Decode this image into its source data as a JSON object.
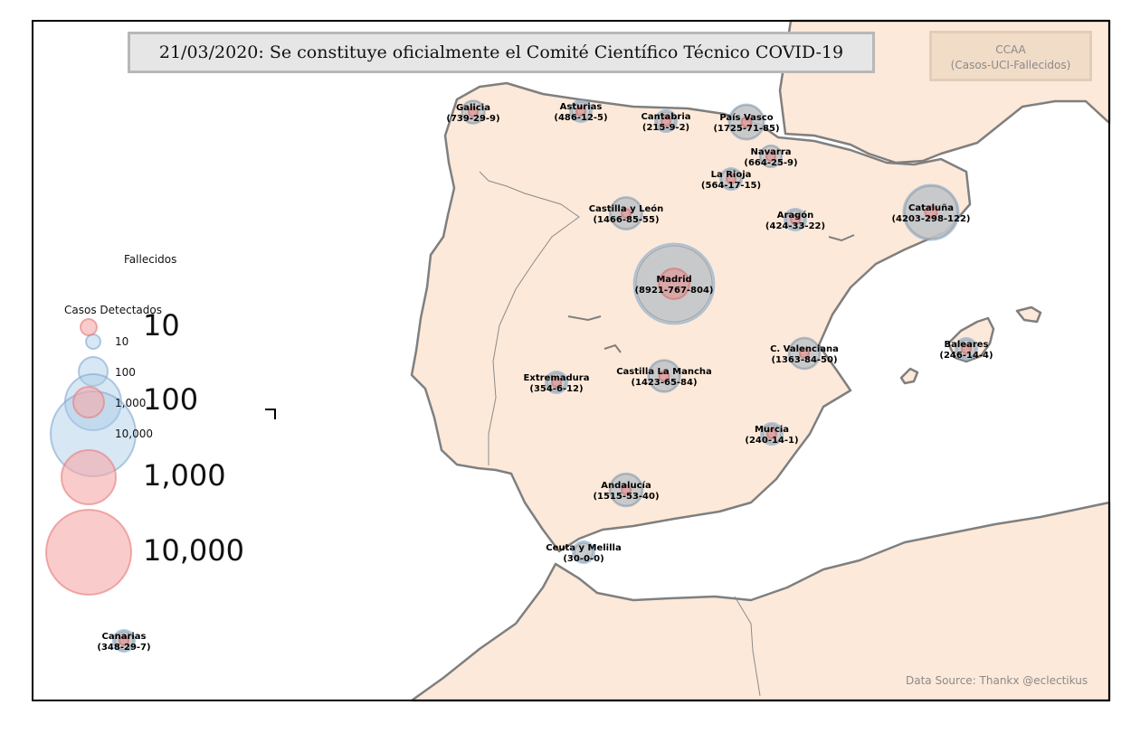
{
  "title": "21/03/2020: Se constituye oficialmente el Comité Científico Técnico COVID-19",
  "legend": {
    "title": "CCAA",
    "subtitle": "(Casos-UCI-Fallecidos)"
  },
  "source": "Data Source: Thankx @eclectikus",
  "size_legend": {
    "fallecidos_title": "Fallecidos",
    "casos_title": "Casos Detectados",
    "casos_labels": [
      "10",
      "100",
      "1,000",
      "10,000"
    ],
    "fallecidos_labels": [
      "10",
      "100",
      "1,000",
      "10,000"
    ]
  },
  "colors": {
    "land": "#fde9d9",
    "coast": "#7f7f7f",
    "casos": "#a9c9e6",
    "uci": "#c4c4c4",
    "fallecidos": "#e58b8b"
  },
  "regions": [
    {
      "name": "Galicia",
      "casos": 739,
      "uci": 29,
      "fallecidos": 9,
      "label": "(739-29-9)"
    },
    {
      "name": "Asturias",
      "casos": 486,
      "uci": 12,
      "fallecidos": 5,
      "label": "(486-12-5)"
    },
    {
      "name": "Cantabria",
      "casos": 215,
      "uci": 9,
      "fallecidos": 2,
      "label": "(215-9-2)"
    },
    {
      "name": "País Vasco",
      "casos": 1725,
      "uci": 71,
      "fallecidos": 85,
      "label": "(1725-71-85)"
    },
    {
      "name": "Navarra",
      "casos": 664,
      "uci": 25,
      "fallecidos": 9,
      "label": "(664-25-9)"
    },
    {
      "name": "La Rioja",
      "casos": 564,
      "uci": 17,
      "fallecidos": 15,
      "label": "(564-17-15)"
    },
    {
      "name": "Castilla y León",
      "casos": 1466,
      "uci": 85,
      "fallecidos": 55,
      "label": "(1466-85-55)"
    },
    {
      "name": "Aragón",
      "casos": 424,
      "uci": 33,
      "fallecidos": 22,
      "label": "(424-33-22)"
    },
    {
      "name": "Cataluña",
      "casos": 4203,
      "uci": 298,
      "fallecidos": 122,
      "label": "(4203-298-122)"
    },
    {
      "name": "Madrid",
      "casos": 8921,
      "uci": 767,
      "fallecidos": 804,
      "label": "(8921-767-804)"
    },
    {
      "name": "Extremadura",
      "casos": 354,
      "uci": 6,
      "fallecidos": 12,
      "label": "(354-6-12)"
    },
    {
      "name": "Castilla La Mancha",
      "casos": 1423,
      "uci": 65,
      "fallecidos": 84,
      "label": "(1423-65-84)"
    },
    {
      "name": "C. Valenciana",
      "casos": 1363,
      "uci": 84,
      "fallecidos": 50,
      "label": "(1363-84-50)"
    },
    {
      "name": "Baleares",
      "casos": 246,
      "uci": 14,
      "fallecidos": 4,
      "label": "(246-14-4)"
    },
    {
      "name": "Murcia",
      "casos": 240,
      "uci": 14,
      "fallecidos": 1,
      "label": "(240-14-1)"
    },
    {
      "name": "Andalucía",
      "casos": 1515,
      "uci": 53,
      "fallecidos": 40,
      "label": "(1515-53-40)"
    },
    {
      "name": "Ceuta y Melilla",
      "casos": 30,
      "uci": 0,
      "fallecidos": 0,
      "label": "(30-0-0)"
    },
    {
      "name": "Canarias",
      "casos": 348,
      "uci": 29,
      "fallecidos": 7,
      "label": "(348-29-7)"
    }
  ]
}
